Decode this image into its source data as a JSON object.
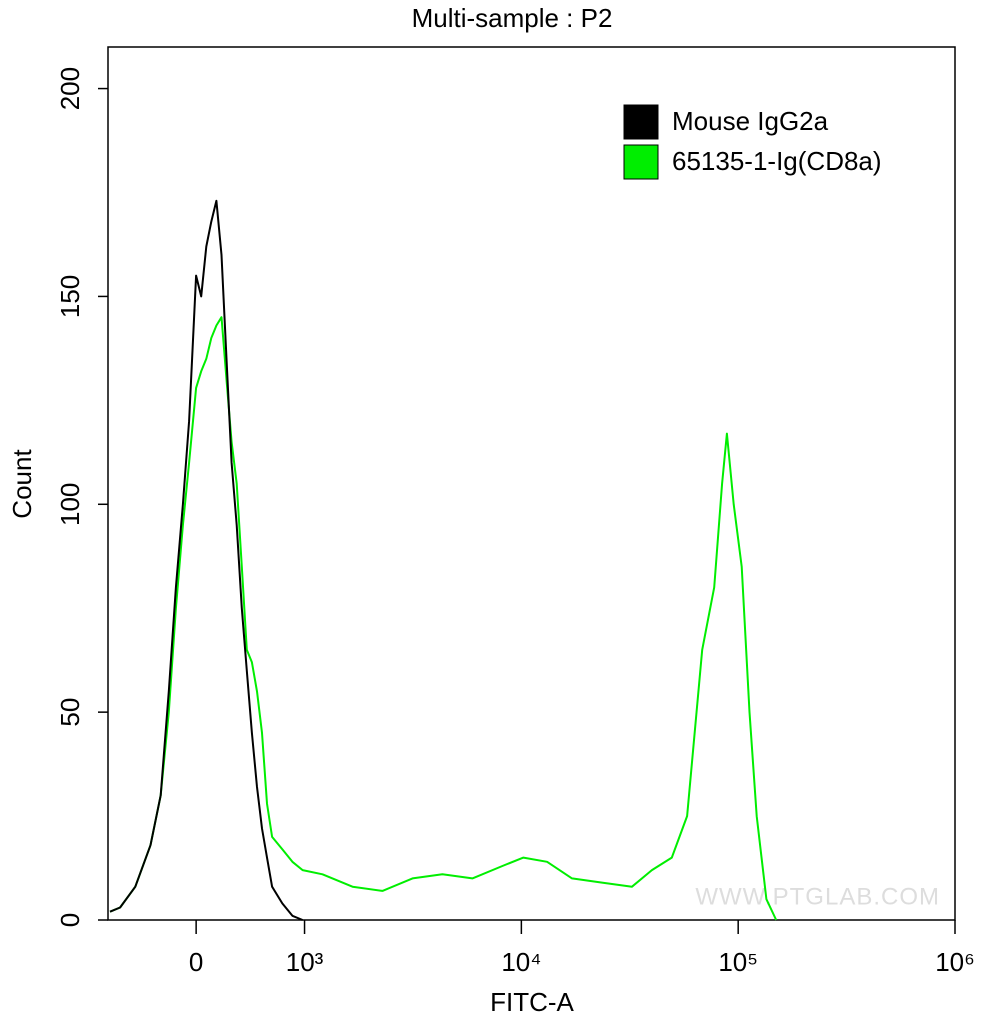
{
  "chart_data": {
    "type": "line",
    "title": "Multi-sample : P2",
    "xlabel": "FITC-A",
    "ylabel": "Count",
    "xscale": "biexponential",
    "xlim": [
      -813,
      1000000
    ],
    "ylim": [
      0,
      210
    ],
    "xticks": [
      0,
      {
        "value": 1000,
        "label": "10³"
      },
      {
        "value": 10000,
        "label": "10⁴"
      },
      {
        "value": 100000,
        "label": "10⁵"
      },
      {
        "value": 1000000,
        "label": "10⁶"
      }
    ],
    "yticks": [
      0,
      50,
      100,
      150,
      200
    ],
    "legend": "top-right",
    "annotation": "WWW.PTGLAB.COM",
    "series": [
      {
        "name": "Mouse IgG2a",
        "color": "#000000",
        "x": [
          -795,
          -701,
          -561,
          -421,
          -327,
          -252,
          -187,
          -122,
          -65,
          0,
          47,
          94,
          140,
          187,
          234,
          280,
          327,
          374,
          421,
          467,
          514,
          561,
          608,
          654,
          701,
          795,
          888,
          982
        ],
        "values": [
          2,
          3,
          8,
          18,
          30,
          55,
          80,
          100,
          120,
          155,
          150,
          162,
          168,
          173,
          160,
          135,
          110,
          95,
          75,
          60,
          45,
          32,
          22,
          15,
          8,
          4,
          1,
          0
        ]
      },
      {
        "name": "65135-1-Ig(CD8a)",
        "color": "#00ee00",
        "x": [
          -795,
          -701,
          -561,
          -421,
          -327,
          -252,
          -187,
          -122,
          -65,
          0,
          47,
          94,
          140,
          187,
          234,
          280,
          327,
          374,
          421,
          467,
          514,
          561,
          608,
          654,
          701,
          795,
          888,
          982,
          1210,
          1664,
          2288,
          3147,
          4324,
          5946,
          8176,
          10220,
          13150,
          17120,
          23540,
          32370,
          39980,
          49430,
          58100,
          68240,
          77500,
          84300,
          88700,
          95400,
          103800,
          112800,
          121700,
          135000,
          149700
        ],
        "values": [
          2,
          3,
          8,
          18,
          30,
          50,
          75,
          95,
          110,
          128,
          132,
          135,
          140,
          143,
          145,
          130,
          115,
          105,
          85,
          65,
          62,
          55,
          45,
          28,
          20,
          17,
          14,
          12,
          11,
          8,
          7,
          10,
          11,
          10,
          13,
          15,
          14,
          10,
          9,
          8,
          12,
          15,
          25,
          65,
          80,
          105,
          117,
          100,
          85,
          50,
          25,
          5,
          0
        ]
      }
    ]
  }
}
